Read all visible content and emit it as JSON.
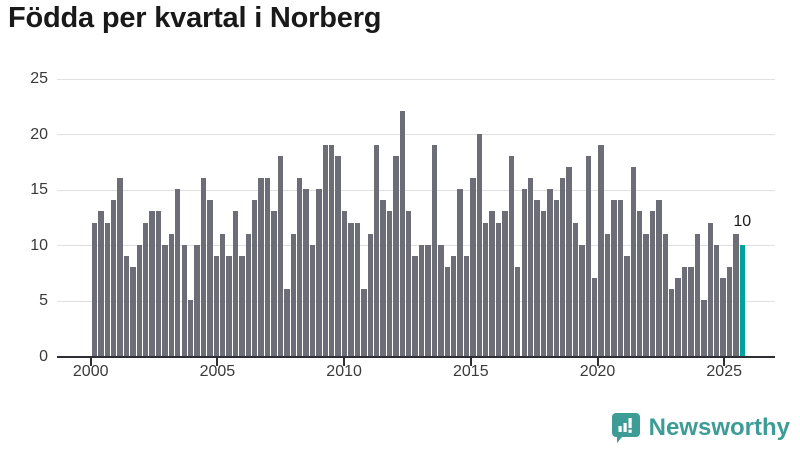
{
  "chart_data": {
    "type": "bar",
    "title": "Födda per kvartal i Norberg",
    "x_start": "2000-Q1",
    "x_end": "2025-Q2",
    "x_freq": "quarter",
    "values": [
      12,
      13,
      12,
      14,
      16,
      9,
      8,
      10,
      12,
      13,
      13,
      10,
      11,
      15,
      10,
      5,
      10,
      16,
      14,
      9,
      11,
      9,
      13,
      9,
      11,
      14,
      16,
      16,
      13,
      18,
      6,
      11,
      16,
      15,
      10,
      15,
      19,
      19,
      18,
      13,
      12,
      12,
      6,
      11,
      19,
      14,
      13,
      18,
      22,
      13,
      9,
      10,
      10,
      19,
      10,
      8,
      9,
      15,
      9,
      16,
      20,
      12,
      13,
      12,
      13,
      18,
      8,
      15,
      16,
      14,
      13,
      15,
      14,
      16,
      17,
      12,
      10,
      18,
      7,
      19,
      11,
      14,
      14,
      9,
      17,
      13,
      11,
      13,
      14,
      11,
      6,
      7,
      8,
      8,
      11,
      5,
      12,
      10,
      7,
      8,
      11,
      10
    ],
    "x_tick_labels": [
      "2000",
      "2005",
      "2010",
      "2015",
      "2020",
      "2025"
    ],
    "y_ticks": [
      0,
      5,
      10,
      15,
      20,
      25
    ],
    "ylim": [
      0,
      25
    ],
    "grid": true,
    "legend": "none",
    "bar_color": "#6d6d77",
    "highlight": {
      "quarter": "2025-Q2",
      "value": 10,
      "label": "10",
      "color": "#00a39c"
    }
  },
  "logo": {
    "text": "Newsworthy",
    "color": "#3d9c95",
    "icon": "bar-chart-speech-bubble"
  }
}
